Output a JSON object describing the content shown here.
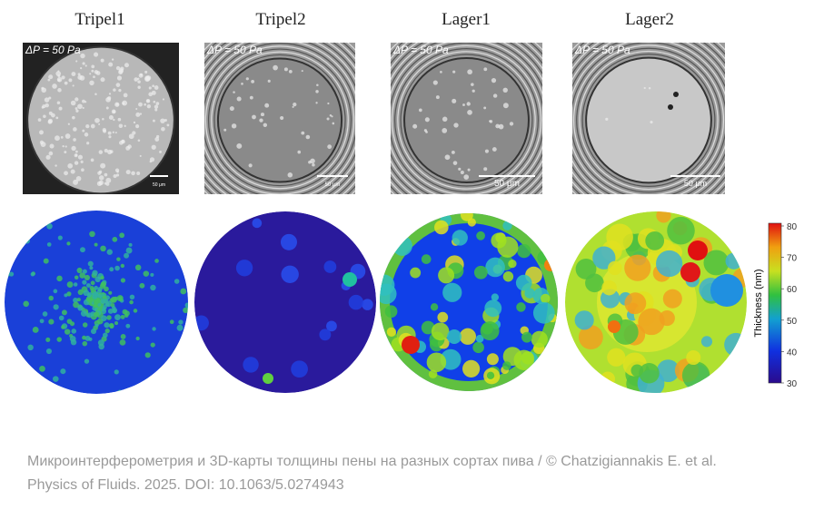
{
  "panels": [
    {
      "title": "Tripel1",
      "pressure_label": "ΔP = 50 Pa",
      "scale_bar_label": "50 μm"
    },
    {
      "title": "Tripel2",
      "pressure_label": "ΔP = 50 Pa",
      "scale_bar_label": "50 μm"
    },
    {
      "title": "Lager1",
      "pressure_label": "ΔP = 50 Pa",
      "scale_bar_label": "50 μm"
    },
    {
      "title": "Lager2",
      "pressure_label": "ΔP = 50 Pa",
      "scale_bar_label": "50 μm"
    }
  ],
  "colorbar": {
    "label": "Thickness (nm)",
    "ticks": [
      "80",
      "70",
      "60",
      "50",
      "40",
      "30"
    ]
  },
  "caption": {
    "line1": "Микроинтерферометрия и 3D-карты толщины пены на разных сортах пива / © Chatzigiannakis E. et al.",
    "line2": "Physics of Fluids. 2025. DOI: 10.1063/5.0274943"
  }
}
